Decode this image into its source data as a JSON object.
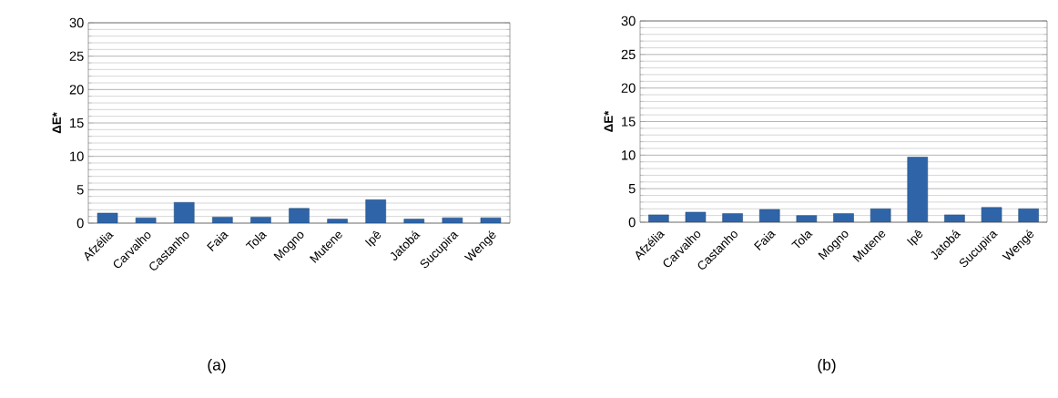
{
  "chart_data": [
    {
      "type": "bar",
      "ylabel": "ΔE*",
      "categories": [
        "Afzélia",
        "Carvalho",
        "Castanho",
        "Faia",
        "Tola",
        "Mogno",
        "Mutene",
        "Ipê",
        "Jatobá",
        "Sucupira",
        "Wengé"
      ],
      "values": [
        1.5,
        0.8,
        3.1,
        0.9,
        0.9,
        2.2,
        0.6,
        3.5,
        0.6,
        0.8,
        0.8
      ],
      "color": "#2f65a8",
      "ylim": [
        0,
        30
      ],
      "yticks": [
        0,
        5,
        10,
        15,
        20,
        25,
        30
      ],
      "grid": true,
      "annotations": [
        "(a)"
      ]
    },
    {
      "type": "bar",
      "ylabel": "ΔE*",
      "categories": [
        "Afzélia",
        "Carvalho",
        "Castanho",
        "Faia",
        "Tola",
        "Mogno",
        "Mutene",
        "Ipê",
        "Jatobá",
        "Sucupira",
        "Wengé"
      ],
      "values": [
        1.1,
        1.5,
        1.3,
        1.9,
        1.0,
        1.3,
        2.0,
        9.7,
        1.1,
        2.2,
        2.0
      ],
      "color": "#2f65a8",
      "ylim": [
        0,
        30
      ],
      "yticks": [
        0,
        5,
        10,
        15,
        20,
        25,
        30
      ],
      "grid": true,
      "annotations": [
        "(b)"
      ]
    }
  ]
}
